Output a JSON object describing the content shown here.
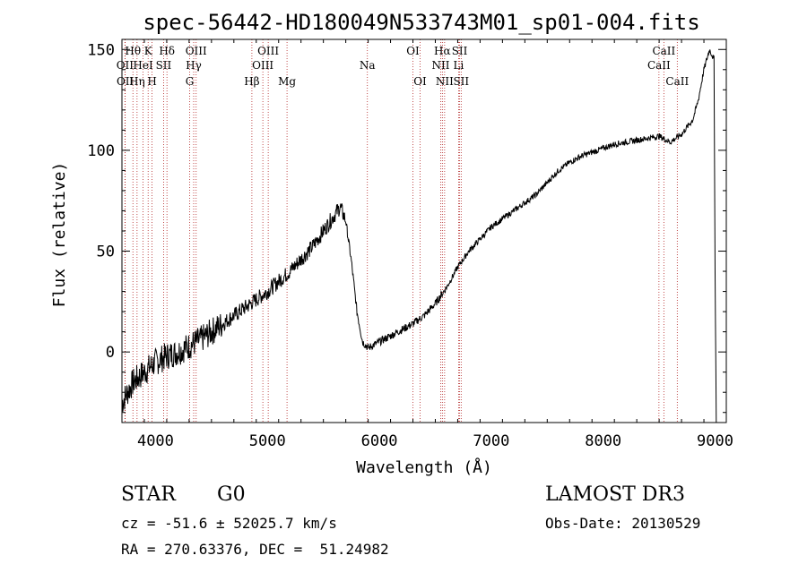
{
  "chart_data": {
    "type": "line",
    "title": "spec-56442-HD180049N533743M01_sp01-004.fits",
    "xlabel": "Wavelength (Å)",
    "ylabel": "Flux (relative)",
    "xlim": [
      3700,
      9100
    ],
    "ylim": [
      -35,
      155
    ],
    "x_ticks": [
      4000,
      5000,
      6000,
      7000,
      8000,
      9000
    ],
    "x_tick_labels": [
      "4000",
      "5000",
      "6000",
      "7000",
      "8000",
      "9000"
    ],
    "y_ticks": [
      0,
      50,
      100,
      150
    ],
    "y_tick_labels": [
      "0",
      "50",
      "100",
      "150"
    ],
    "grid": false,
    "series": [
      {
        "name": "spectrum",
        "x": [
          3700,
          3800,
          3900,
          4000,
          4100,
          4200,
          4300,
          4400,
          4500,
          4600,
          4700,
          4800,
          4900,
          5000,
          5100,
          5200,
          5300,
          5400,
          5500,
          5600,
          5650,
          5700,
          5750,
          5800,
          5850,
          5900,
          6000,
          6100,
          6200,
          6300,
          6400,
          6500,
          6600,
          6700,
          6800,
          6900,
          7000,
          7100,
          7200,
          7300,
          7400,
          7500,
          7600,
          7700,
          7800,
          7900,
          8000,
          8100,
          8200,
          8300,
          8400,
          8500,
          8600,
          8700,
          8800,
          8850,
          8900,
          8950,
          8990,
          9000,
          9010
        ],
        "y": [
          -25,
          -15,
          -10,
          -5,
          -2,
          0,
          3,
          6,
          10,
          14,
          18,
          22,
          26,
          30,
          35,
          40,
          46,
          52,
          60,
          68,
          72,
          65,
          45,
          20,
          5,
          2,
          5,
          8,
          11,
          14,
          18,
          24,
          32,
          42,
          50,
          56,
          62,
          66,
          70,
          74,
          78,
          84,
          90,
          94,
          97,
          99,
          101,
          103,
          104,
          105,
          106,
          107,
          104,
          108,
          115,
          125,
          140,
          150,
          145,
          40,
          -35
        ]
      }
    ],
    "lines": [
      {
        "label": "Hθ",
        "x": 3798,
        "row": 1
      },
      {
        "label": "OII",
        "x": 3727,
        "row": 2
      },
      {
        "label": "OII",
        "x": 3729,
        "row": 3
      },
      {
        "label": "K",
        "x": 3934,
        "row": 1
      },
      {
        "label": "HeI",
        "x": 3889,
        "row": 2
      },
      {
        "label": "Hη",
        "x": 3835,
        "row": 3
      },
      {
        "label": "SII",
        "x": 4072,
        "row": 2
      },
      {
        "label": "H",
        "x": 3969,
        "row": 3
      },
      {
        "label": "Hδ",
        "x": 4102,
        "row": 1
      },
      {
        "label": "OIII",
        "x": 4363,
        "row": 1
      },
      {
        "label": "Hγ",
        "x": 4341,
        "row": 2
      },
      {
        "label": "G",
        "x": 4305,
        "row": 3
      },
      {
        "label": "Hβ",
        "x": 4861,
        "row": 3
      },
      {
        "label": "OIII",
        "x": 5007,
        "row": 1
      },
      {
        "label": "OIII",
        "x": 4959,
        "row": 2
      },
      {
        "label": "Mg",
        "x": 5175,
        "row": 3
      },
      {
        "label": "Na",
        "x": 5893,
        "row": 2
      },
      {
        "label": "OI",
        "x": 6300,
        "row": 1
      },
      {
        "label": "OI",
        "x": 6364,
        "row": 3
      },
      {
        "label": "Hα",
        "x": 6563,
        "row": 1
      },
      {
        "label": "NII",
        "x": 6548,
        "row": 2
      },
      {
        "label": "NII",
        "x": 6583,
        "row": 3
      },
      {
        "label": "SII",
        "x": 6717,
        "row": 1
      },
      {
        "label": "Li",
        "x": 6708,
        "row": 2
      },
      {
        "label": "SII",
        "x": 6731,
        "row": 3
      },
      {
        "label": "CaII",
        "x": 8542,
        "row": 1
      },
      {
        "label": "CaII",
        "x": 8498,
        "row": 2
      },
      {
        "label": "CaII",
        "x": 8662,
        "row": 3
      }
    ]
  },
  "info": {
    "object_class": "STAR",
    "subclass": "G0",
    "survey": "LAMOST DR3",
    "redshift": "cz = -51.6 ± 52025.7 km/s",
    "obs_date": "Obs-Date: 20130529",
    "coords": "RA = 270.63376, DEC =  51.24982"
  }
}
